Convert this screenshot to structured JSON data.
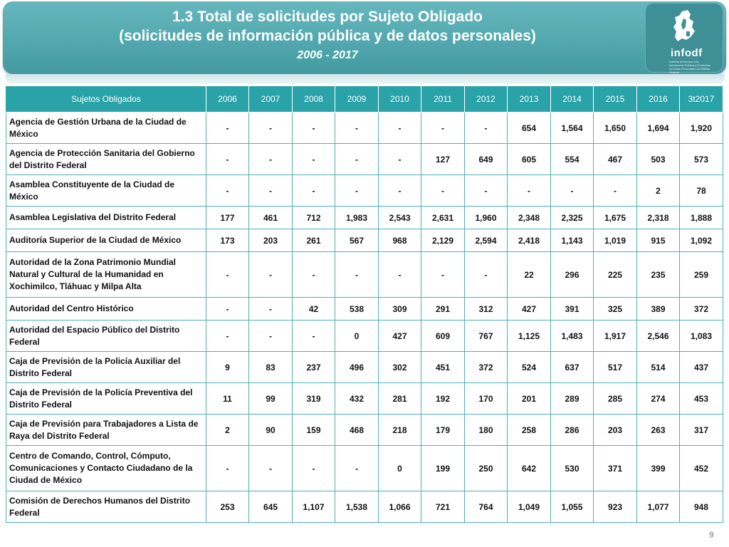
{
  "header": {
    "title_line1": "1.3 Total de solicitudes por Sujeto Obligado",
    "title_line2": "(solicitudes de información pública y de datos personales)",
    "subtitle": "2006 - 2017",
    "logo_text": "infodf",
    "logo_subtext": "Instituto de Acceso a la Información Pública y Protección de Datos Personales del Distrito Federal"
  },
  "table": {
    "columns": [
      "Sujetos Obligados",
      "2006",
      "2007",
      "2008",
      "2009",
      "2010",
      "2011",
      "2012",
      "2013",
      "2014",
      "2015",
      "2016",
      "3t2017"
    ],
    "rows": [
      {
        "name": "Agencia de Gestión Urbana de la Ciudad de México",
        "values": [
          "-",
          "-",
          "-",
          "-",
          "-",
          "-",
          "-",
          "654",
          "1,564",
          "1,650",
          "1,694",
          "1,920"
        ]
      },
      {
        "name": "Agencia de Protección Sanitaria del Gobierno del Distrito Federal",
        "values": [
          "-",
          "-",
          "-",
          "-",
          "-",
          "127",
          "649",
          "605",
          "554",
          "467",
          "503",
          "573"
        ]
      },
      {
        "name": "Asamblea Constituyente de la Ciudad de México",
        "values": [
          "-",
          "-",
          "-",
          "-",
          "-",
          "-",
          "-",
          "-",
          "-",
          "-",
          "2",
          "78"
        ]
      },
      {
        "name": "Asamblea Legislativa del Distrito Federal",
        "values": [
          "177",
          "461",
          "712",
          "1,983",
          "2,543",
          "2,631",
          "1,960",
          "2,348",
          "2,325",
          "1,675",
          "2,318",
          "1,888"
        ]
      },
      {
        "name": "Auditoría Superior de la Ciudad de México",
        "values": [
          "173",
          "203",
          "261",
          "567",
          "968",
          "2,129",
          "2,594",
          "2,418",
          "1,143",
          "1,019",
          "915",
          "1,092"
        ]
      },
      {
        "name": "Autoridad de la Zona Patrimonio Mundial Natural y Cultural de la Humanidad en Xochimilco, Tláhuac y Milpa Alta",
        "values": [
          "-",
          "-",
          "-",
          "-",
          "-",
          "-",
          "-",
          "22",
          "296",
          "225",
          "235",
          "259"
        ]
      },
      {
        "name": "Autoridad del Centro Histórico",
        "values": [
          "-",
          "-",
          "42",
          "538",
          "309",
          "291",
          "312",
          "427",
          "391",
          "325",
          "389",
          "372"
        ]
      },
      {
        "name": "Autoridad del Espacio Público del Distrito Federal",
        "values": [
          "-",
          "-",
          "-",
          "0",
          "427",
          "609",
          "767",
          "1,125",
          "1,483",
          "1,917",
          "2,546",
          "1,083"
        ]
      },
      {
        "name": "Caja de Previsión de la Policía Auxiliar del Distrito Federal",
        "values": [
          "9",
          "83",
          "237",
          "496",
          "302",
          "451",
          "372",
          "524",
          "637",
          "517",
          "514",
          "437"
        ]
      },
      {
        "name": "Caja de Previsión de la Policía Preventiva del Distrito Federal",
        "values": [
          "11",
          "99",
          "319",
          "432",
          "281",
          "192",
          "170",
          "201",
          "289",
          "285",
          "274",
          "453"
        ]
      },
      {
        "name": "Caja de Previsión para Trabajadores a Lista de Raya del Distrito Federal",
        "values": [
          "2",
          "90",
          "159",
          "468",
          "218",
          "179",
          "180",
          "258",
          "286",
          "203",
          "263",
          "317"
        ]
      },
      {
        "name": "Centro de Comando, Control, Cómputo, Comunicaciones y Contacto Ciudadano de la Ciudad de México",
        "values": [
          "-",
          "-",
          "-",
          "-",
          "0",
          "199",
          "250",
          "642",
          "530",
          "371",
          "399",
          "452"
        ]
      },
      {
        "name": "Comisión de Derechos Humanos del Distrito Federal",
        "values": [
          "253",
          "645",
          "1,107",
          "1,538",
          "1,066",
          "721",
          "764",
          "1,049",
          "1,055",
          "923",
          "1,077",
          "948"
        ]
      }
    ]
  },
  "page_number": "9",
  "colors": {
    "header_bg": "#52a8ae",
    "table_header_bg": "#2aa3a8",
    "grid_line": "#4fb0b4"
  }
}
